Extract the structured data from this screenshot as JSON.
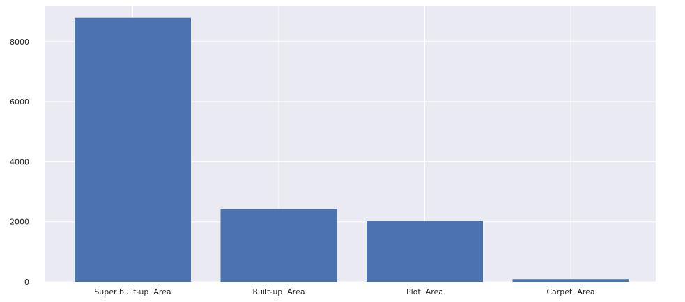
{
  "chart_data": {
    "type": "bar",
    "categories": [
      "Super built-up  Area",
      "Built-up  Area",
      "Plot  Area",
      "Carpet  Area"
    ],
    "values": [
      8790,
      2418,
      2025,
      87
    ],
    "ylim": [
      0,
      9200
    ],
    "yticks": [
      0,
      2000,
      4000,
      6000,
      8000
    ],
    "title": "",
    "xlabel": "",
    "ylabel": "",
    "grid": true,
    "bar_color": "#4c72b0",
    "background_color": "#eaeaf2",
    "grid_color": "#ffffff"
  }
}
